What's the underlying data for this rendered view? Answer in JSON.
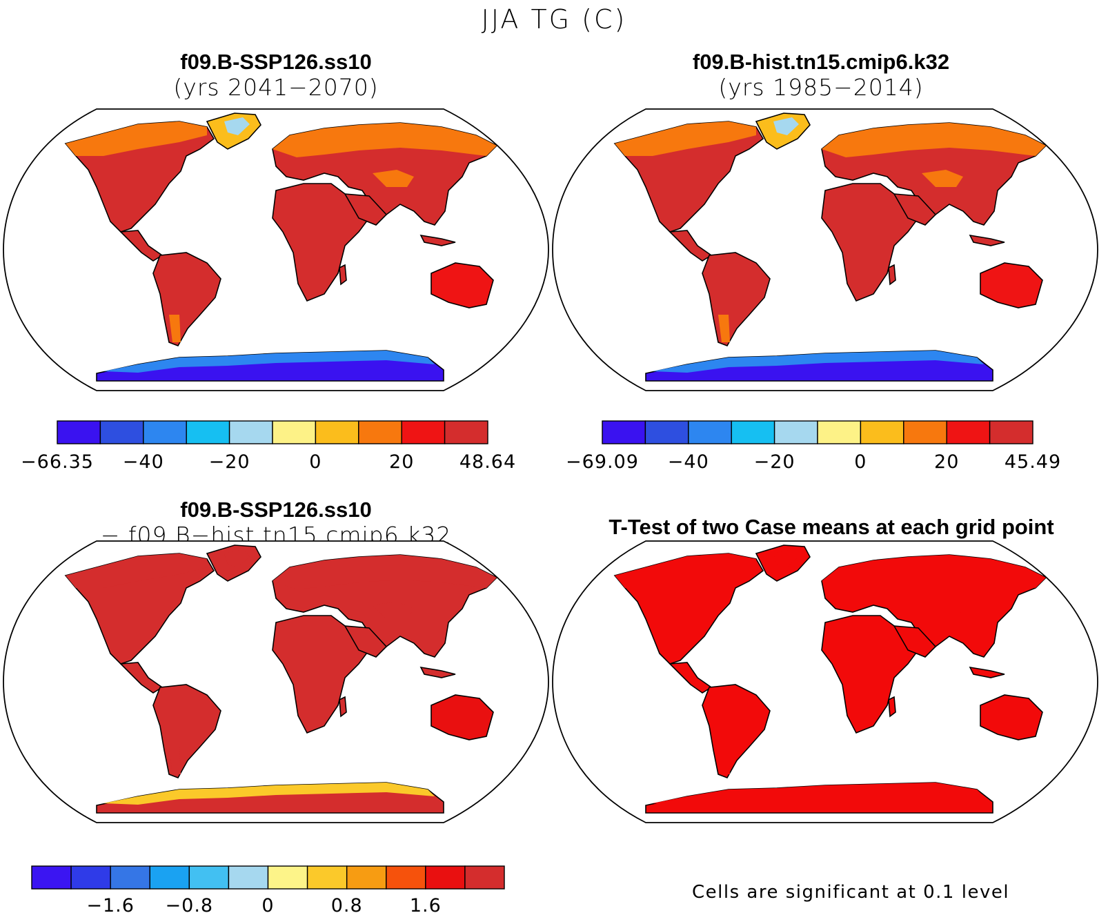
{
  "figure_title": "JJA TG (C)",
  "panels": [
    {
      "id": "ssp126",
      "title_line1": "f09.B-SSP126.ss10",
      "title_line2": "(yrs 2041−2070)",
      "colorbar": {
        "colors": [
          "#3a12f0",
          "#2e4fe0",
          "#2d86f0",
          "#16bff2",
          "#a6d8ef",
          "#fdf287",
          "#fbbd1c",
          "#f7780e",
          "#ef1414",
          "#d42d2d"
        ],
        "tick_labels": [
          "−66.35",
          "−40",
          "−20",
          "0",
          "20",
          "48.64"
        ],
        "tick_values": [
          -66.35,
          -40,
          -20,
          0,
          20,
          48.64
        ],
        "levels": [
          -66.35,
          -50,
          -40,
          -30,
          -20,
          -10,
          0,
          10,
          20,
          30,
          48.64
        ]
      }
    },
    {
      "id": "hist",
      "title_line1": "f09.B-hist.tn15.cmip6.k32",
      "title_line2": "(yrs 1985−2014)",
      "colorbar": {
        "colors": [
          "#3a12f0",
          "#2e4fe0",
          "#2d86f0",
          "#16bff2",
          "#a6d8ef",
          "#fdf287",
          "#fbbd1c",
          "#f7780e",
          "#ef1414",
          "#d42d2d"
        ],
        "tick_labels": [
          "−69.09",
          "−40",
          "−20",
          "0",
          "20",
          "45.49"
        ],
        "tick_values": [
          -69.09,
          -40,
          -20,
          0,
          20,
          45.49
        ],
        "levels": [
          -69.09,
          -50,
          -40,
          -30,
          -20,
          -10,
          0,
          10,
          20,
          30,
          45.49
        ]
      }
    },
    {
      "id": "diff",
      "title_line1": "f09.B-SSP126.ss10",
      "title_line2": "− f09.B−hist.tn15.cmip6.k32",
      "colorbar": {
        "colors": [
          "#3b15f2",
          "#2f3be8",
          "#3576e6",
          "#1aa2f2",
          "#42c0f2",
          "#a6d8ef",
          "#fdf489",
          "#fbc92a",
          "#f79c12",
          "#f6520c",
          "#e91010",
          "#d42d2d"
        ],
        "tick_labels": [
          "−1.6",
          "−0.8",
          "0",
          "0.8",
          "1.6"
        ],
        "tick_values": [
          -1.6,
          -0.8,
          0,
          0.8,
          1.6
        ],
        "levels": [
          -2.4,
          -2.0,
          -1.6,
          -1.2,
          -0.8,
          -0.4,
          0,
          0.4,
          0.8,
          1.2,
          1.6,
          2.0,
          2.4
        ]
      }
    },
    {
      "id": "ttest",
      "title_line1": "T-Test of two Case means at each grid point",
      "note": "Cells are significant at 0.1 level"
    }
  ],
  "map_colors": {
    "ssp126": {
      "land": "#d42d2d",
      "warm": "#ef1414",
      "north": "#f7780e",
      "arctic": "#fbbd1c",
      "ice": "#fdf287",
      "icecap": "#a6d8ef",
      "antarctic": "#3a12f0",
      "antarctic_edge": "#2d86f0"
    },
    "hist": {
      "land": "#d42d2d",
      "warm": "#ef1414",
      "north": "#f7780e",
      "arctic": "#fbbd1c",
      "ice": "#fdf287",
      "icecap": "#a6d8ef",
      "antarctic": "#3a12f0",
      "antarctic_edge": "#2d86f0"
    },
    "diff": {
      "land": "#d42d2d",
      "warm": "#e91010",
      "north": "#d42d2d",
      "arctic": "#d42d2d",
      "ice": "#fbc92a",
      "icecap": "#d42d2d",
      "antarctic": "#d42d2d",
      "antarctic_edge": "#fbc92a"
    },
    "ttest": {
      "land": "#f20a0a",
      "warm": "#f20a0a",
      "north": "#f20a0a",
      "arctic": "#f20a0a",
      "ice": "#f20a0a",
      "icecap": "#f20a0a",
      "antarctic": "#f20a0a",
      "antarctic_edge": "#f20a0a"
    }
  }
}
